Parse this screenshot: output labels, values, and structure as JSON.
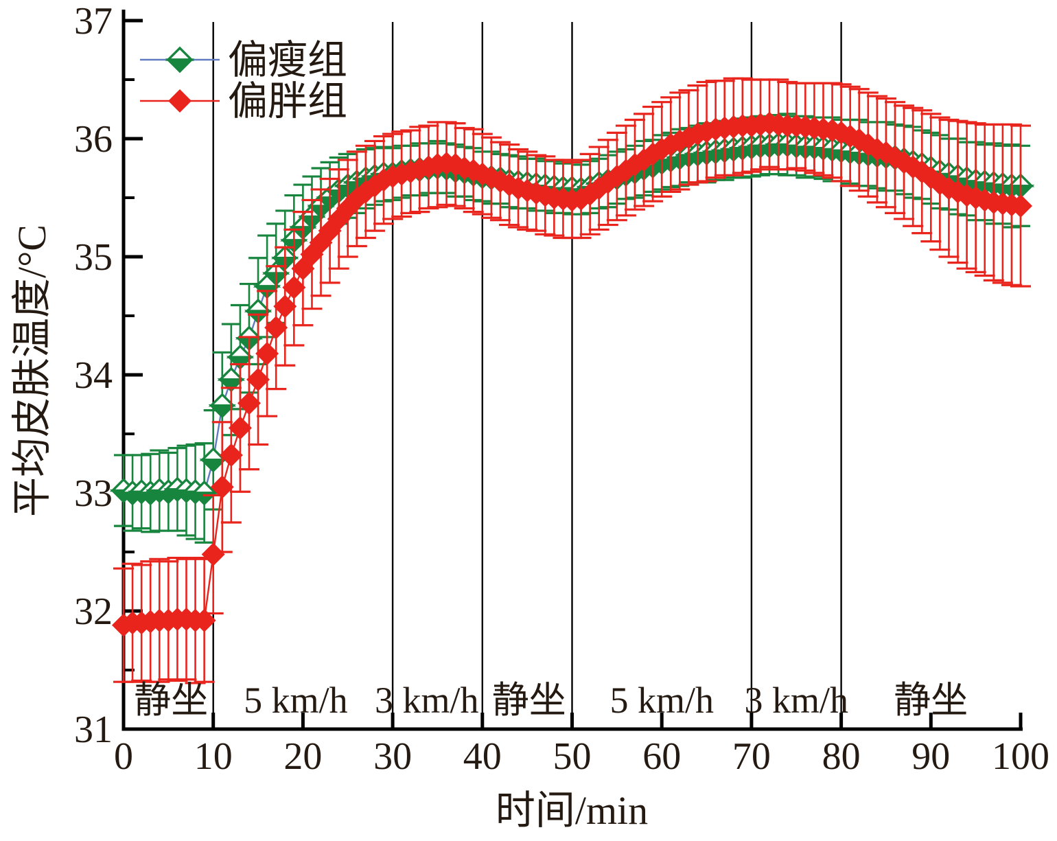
{
  "chart_data": {
    "type": "line",
    "title": "",
    "xlabel": "时间/min",
    "ylabel": "平均皮肤温度/°C",
    "xlim": [
      0,
      100
    ],
    "ylim": [
      31,
      37
    ],
    "x_ticks": [
      0,
      10,
      20,
      30,
      40,
      50,
      60,
      70,
      80,
      90,
      100
    ],
    "y_ticks": [
      31,
      32,
      33,
      34,
      35,
      36,
      37
    ],
    "y_minor_ticks": [
      31.5,
      32.5,
      33.5,
      34.5,
      35.5,
      36.5
    ],
    "grid": "vertical-phase-boundaries",
    "grid_vlines": [
      10,
      30,
      40,
      50,
      70,
      80
    ],
    "legend_position": "top-left",
    "phases": [
      {
        "label": "静坐",
        "from": 0,
        "to": 10,
        "center": 5.3
      },
      {
        "label": "5 km/h",
        "from": 10,
        "to": 30,
        "center": 19.2
      },
      {
        "label": "3 km/h",
        "from": 30,
        "to": 40,
        "center": 33.8
      },
      {
        "label": "静坐",
        "from": 40,
        "to": 50,
        "center": 45.2
      },
      {
        "label": "5 km/h",
        "from": 50,
        "to": 70,
        "center": 60.0
      },
      {
        "label": "3 km/h",
        "from": 70,
        "to": 80,
        "center": 75.0
      },
      {
        "label": "静坐",
        "from": 80,
        "to": 100,
        "center": 90.0
      }
    ],
    "colors": {
      "axis": "#000000",
      "gridline": "#000000",
      "text": "#241a12",
      "lean_marker": "#17853e",
      "lean_line": "#5f7cc1",
      "fat_marker": "#e9241d",
      "fat_line": "#e9241d"
    },
    "x": [
      0,
      1,
      2,
      3,
      4,
      5,
      6,
      7,
      8,
      9,
      10,
      11,
      12,
      13,
      14,
      15,
      16,
      17,
      18,
      19,
      20,
      21,
      22,
      23,
      24,
      25,
      26,
      27,
      28,
      29,
      30,
      31,
      32,
      33,
      34,
      35,
      36,
      37,
      38,
      39,
      40,
      41,
      42,
      43,
      44,
      45,
      46,
      47,
      48,
      49,
      50,
      51,
      52,
      53,
      54,
      55,
      56,
      57,
      58,
      59,
      60,
      61,
      62,
      63,
      64,
      65,
      66,
      67,
      68,
      69,
      70,
      71,
      72,
      73,
      74,
      75,
      76,
      77,
      78,
      79,
      80,
      81,
      82,
      83,
      84,
      85,
      86,
      87,
      88,
      89,
      90,
      91,
      92,
      93,
      94,
      95,
      96,
      97,
      98,
      99,
      100
    ],
    "series": [
      {
        "name": "偏瘦组",
        "marker": "half-filled-diamond",
        "marker_color": "#17853e",
        "line_color": "#5f7cc1",
        "values": [
          33.02,
          33.0,
          33.01,
          33.0,
          33.02,
          33.01,
          33.03,
          33.02,
          33.01,
          33.0,
          33.28,
          33.74,
          33.96,
          34.15,
          34.31,
          34.54,
          34.75,
          34.86,
          34.99,
          35.14,
          35.25,
          35.34,
          35.43,
          35.5,
          35.56,
          35.6,
          35.63,
          35.66,
          35.68,
          35.7,
          35.7,
          35.72,
          35.73,
          35.74,
          35.75,
          35.76,
          35.75,
          35.73,
          35.72,
          35.7,
          35.68,
          35.67,
          35.66,
          35.64,
          35.63,
          35.62,
          35.61,
          35.6,
          35.59,
          35.58,
          35.58,
          35.57,
          35.59,
          35.62,
          35.64,
          35.67,
          35.7,
          35.72,
          35.75,
          35.77,
          35.8,
          35.82,
          35.84,
          35.86,
          35.87,
          35.88,
          35.89,
          35.9,
          35.91,
          35.92,
          35.93,
          35.94,
          35.94,
          35.95,
          35.95,
          35.94,
          35.93,
          35.93,
          35.92,
          35.91,
          35.9,
          35.89,
          35.88,
          35.87,
          35.86,
          35.85,
          35.84,
          35.82,
          35.8,
          35.78,
          35.75,
          35.72,
          35.7,
          35.68,
          35.66,
          35.64,
          35.63,
          35.62,
          35.61,
          35.6,
          35.6
        ],
        "errors": [
          0.3,
          0.32,
          0.31,
          0.33,
          0.34,
          0.33,
          0.35,
          0.38,
          0.4,
          0.42,
          0.42,
          0.45,
          0.47,
          0.44,
          0.46,
          0.45,
          0.43,
          0.42,
          0.4,
          0.38,
          0.36,
          0.34,
          0.32,
          0.3,
          0.28,
          0.27,
          0.26,
          0.25,
          0.24,
          0.23,
          0.22,
          0.22,
          0.21,
          0.22,
          0.21,
          0.22,
          0.21,
          0.22,
          0.21,
          0.22,
          0.21,
          0.22,
          0.21,
          0.22,
          0.22,
          0.21,
          0.22,
          0.21,
          0.22,
          0.21,
          0.22,
          0.21,
          0.22,
          0.21,
          0.22,
          0.22,
          0.21,
          0.22,
          0.23,
          0.22,
          0.23,
          0.23,
          0.24,
          0.23,
          0.24,
          0.25,
          0.24,
          0.25,
          0.24,
          0.25,
          0.25,
          0.25,
          0.24,
          0.25,
          0.26,
          0.25,
          0.26,
          0.25,
          0.26,
          0.27,
          0.26,
          0.27,
          0.28,
          0.27,
          0.28,
          0.29,
          0.28,
          0.29,
          0.3,
          0.29,
          0.3,
          0.31,
          0.3,
          0.32,
          0.31,
          0.33,
          0.32,
          0.34,
          0.33,
          0.35,
          0.34
        ]
      },
      {
        "name": "偏胖组",
        "marker": "filled-diamond",
        "marker_color": "#e9241d",
        "line_color": "#e9241d",
        "values": [
          31.88,
          31.9,
          31.9,
          31.91,
          31.92,
          31.92,
          31.93,
          31.93,
          31.92,
          31.92,
          32.48,
          33.05,
          33.32,
          33.55,
          33.76,
          33.96,
          34.18,
          34.4,
          34.58,
          34.74,
          34.9,
          35.02,
          35.12,
          35.22,
          35.32,
          35.41,
          35.49,
          35.55,
          35.6,
          35.65,
          35.68,
          35.7,
          35.72,
          35.74,
          35.76,
          35.78,
          35.79,
          35.78,
          35.75,
          35.73,
          35.7,
          35.67,
          35.64,
          35.61,
          35.58,
          35.56,
          35.54,
          35.52,
          35.5,
          35.49,
          35.48,
          35.49,
          35.53,
          35.58,
          35.63,
          35.68,
          35.73,
          35.78,
          35.82,
          35.87,
          35.91,
          35.95,
          35.98,
          36.01,
          36.04,
          36.06,
          36.08,
          36.09,
          36.1,
          36.11,
          36.11,
          36.12,
          36.13,
          36.12,
          36.11,
          36.11,
          36.1,
          36.09,
          36.08,
          36.07,
          36.05,
          36.02,
          35.99,
          35.95,
          35.91,
          35.88,
          35.84,
          35.8,
          35.76,
          35.72,
          35.67,
          35.62,
          35.58,
          35.55,
          35.52,
          35.5,
          35.48,
          35.46,
          35.45,
          35.44,
          35.43
        ],
        "errors": [
          0.48,
          0.5,
          0.49,
          0.51,
          0.52,
          0.5,
          0.52,
          0.51,
          0.53,
          0.52,
          0.5,
          0.55,
          0.57,
          0.54,
          0.56,
          0.55,
          0.53,
          0.52,
          0.5,
          0.49,
          0.48,
          0.46,
          0.45,
          0.44,
          0.42,
          0.41,
          0.4,
          0.39,
          0.38,
          0.37,
          0.36,
          0.36,
          0.35,
          0.36,
          0.35,
          0.36,
          0.35,
          0.35,
          0.34,
          0.35,
          0.34,
          0.34,
          0.33,
          0.34,
          0.33,
          0.33,
          0.32,
          0.33,
          0.32,
          0.33,
          0.32,
          0.33,
          0.34,
          0.35,
          0.36,
          0.37,
          0.38,
          0.38,
          0.39,
          0.4,
          0.4,
          0.4,
          0.41,
          0.4,
          0.41,
          0.42,
          0.41,
          0.4,
          0.41,
          0.4,
          0.39,
          0.38,
          0.37,
          0.38,
          0.37,
          0.36,
          0.37,
          0.38,
          0.39,
          0.4,
          0.41,
          0.42,
          0.43,
          0.44,
          0.45,
          0.46,
          0.47,
          0.48,
          0.5,
          0.52,
          0.54,
          0.56,
          0.58,
          0.6,
          0.62,
          0.63,
          0.64,
          0.66,
          0.67,
          0.68,
          0.68
        ]
      }
    ]
  }
}
